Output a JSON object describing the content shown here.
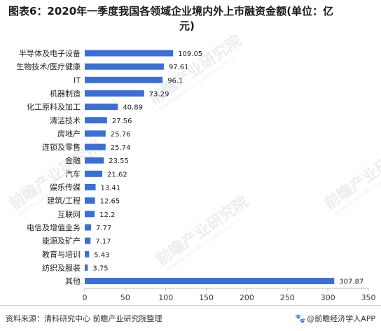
{
  "title": {
    "line1": "图表6：2020年一季度我国各领域企业境内外上市融资金额(单位：亿",
    "line2": "元)"
  },
  "chart_data": {
    "type": "bar",
    "orientation": "horizontal",
    "title": "图表6：2020年一季度我国各领域企业境内外上市融资金额(单位：亿元)",
    "categories": [
      "半导体及电子设备",
      "生物技术/医疗健康",
      "IT",
      "机器制造",
      "化工原料及加工",
      "清洁技术",
      "房地产",
      "连锁及零售",
      "金融",
      "汽车",
      "娱乐传媒",
      "建筑/工程",
      "互联网",
      "电信及增值业务",
      "能源及矿产",
      "教育与培训",
      "纺织及服装",
      "其他"
    ],
    "values": [
      109.05,
      97.61,
      96.1,
      73.29,
      40.89,
      27.56,
      25.76,
      25.74,
      23.55,
      21.62,
      13.41,
      12.65,
      12.2,
      7.77,
      7.17,
      5.43,
      3.75,
      307.87
    ],
    "value_labels": [
      "109.05",
      "97.61",
      "96.1",
      "73.29",
      "40.89",
      "27.56",
      "25.76",
      "25.74",
      "23.55",
      "21.62",
      "13.41",
      "12.65",
      "12.2",
      "7.77",
      "7.17",
      "5.43",
      "3.75",
      "307.87"
    ],
    "xticks": [
      "0",
      "50",
      "100",
      "150",
      "200",
      "250",
      "300",
      "350"
    ],
    "xlim": [
      0,
      350
    ],
    "grid": false,
    "bar_color": "#3a6fd8"
  },
  "watermark": {
    "text": "前瞻产业研究院",
    "subtext": "QIANZHAN INDUSTRY RESEARCH INSTITUTE"
  },
  "footer": {
    "source": "资料来源：清科研究中心 前瞻产业研究院整理",
    "brand_icon": "paw-icon",
    "brand": "@前瞻经济学人APP"
  }
}
